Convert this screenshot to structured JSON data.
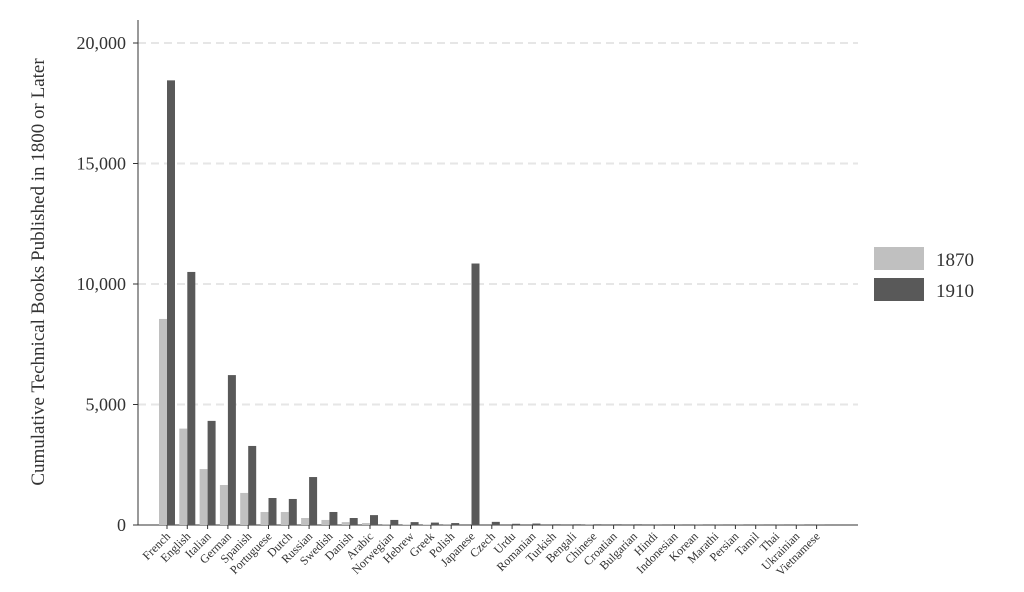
{
  "chart_data": {
    "type": "bar",
    "y_label": "Cumulative Technical Books Published in 1800 or Later",
    "categories": [
      "French",
      "English",
      "Italian",
      "German",
      "Spanish",
      "Portuguese",
      "Dutch",
      "Russian",
      "Swedish",
      "Danish",
      "Arabic",
      "Norwegian",
      "Hebrew",
      "Greek",
      "Polish",
      "Japanese",
      "Czech",
      "Urdu",
      "Romanian",
      "Turkish",
      "Bengali",
      "Chinese",
      "Croatian",
      "Bulgarian",
      "Hindi",
      "Indonesian",
      "Korean",
      "Marathi",
      "Persian",
      "Tamil",
      "Thai",
      "Ukrainian",
      "Vietnamese"
    ],
    "series": [
      {
        "name": "1870",
        "color": "#c0c0c0",
        "values": [
          8550,
          4000,
          2320,
          1660,
          1330,
          540,
          540,
          290,
          210,
          120,
          80,
          40,
          20,
          20,
          10,
          0,
          0,
          0,
          0,
          0,
          0,
          10,
          0,
          0,
          0,
          0,
          0,
          0,
          0,
          0,
          0,
          0,
          0
        ]
      },
      {
        "name": "1910",
        "color": "#595959",
        "values": [
          18450,
          10500,
          4320,
          6220,
          3280,
          1120,
          1080,
          1990,
          540,
          290,
          410,
          210,
          120,
          100,
          80,
          10850,
          130,
          50,
          60,
          30,
          30,
          30,
          30,
          30,
          10,
          10,
          20,
          10,
          20,
          10,
          10,
          20,
          10
        ]
      }
    ],
    "ylim": [
      0,
      20000
    ],
    "yticks": [
      0,
      {
        "value": 5000,
        "label": "5,000"
      },
      {
        "value": 10000,
        "label": "10,000"
      },
      {
        "value": 15000,
        "label": "15,000"
      },
      {
        "value": 20000,
        "label": "20,000"
      }
    ],
    "grid": true,
    "legend": "right"
  }
}
